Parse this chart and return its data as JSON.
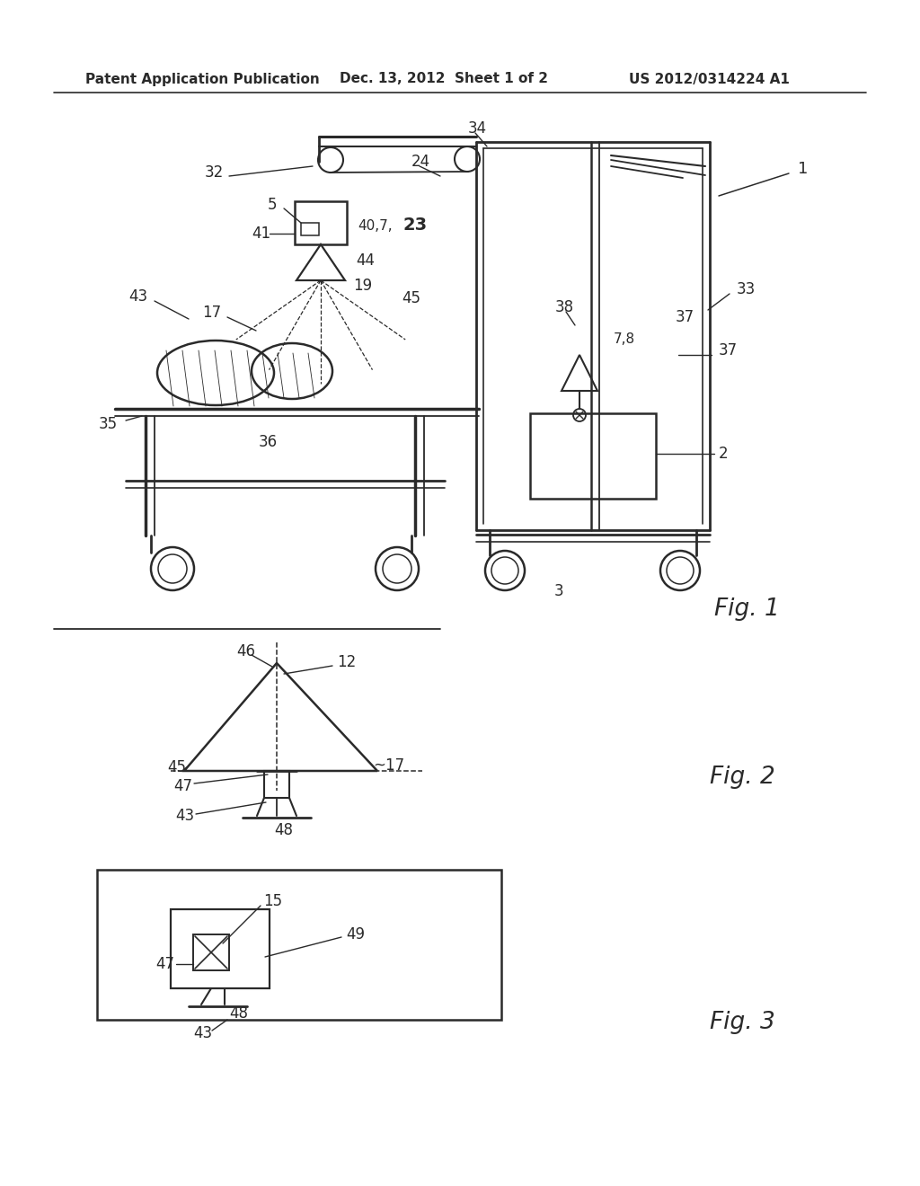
{
  "bg_color": "#ffffff",
  "line_color": "#2a2a2a",
  "header_left": "Patent Application Publication",
  "header_mid": "Dec. 13, 2012  Sheet 1 of 2",
  "header_right": "US 2012/0314224 A1",
  "fig1_label": "Fig. 1",
  "fig2_label": "Fig. 2",
  "fig3_label": "Fig. 3"
}
